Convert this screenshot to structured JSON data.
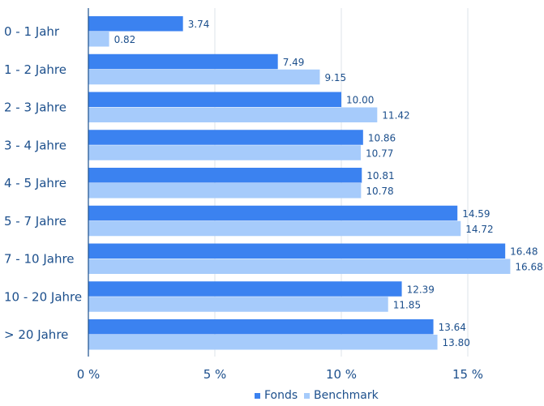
{
  "chart_data": {
    "type": "bar",
    "orientation": "horizontal",
    "categories": [
      "0 - 1 Jahr",
      "1 - 2 Jahre",
      "2 - 3 Jahre",
      "3 - 4 Jahre",
      "4 - 5 Jahre",
      "5 - 7 Jahre",
      "7 - 10 Jahre",
      "10 - 20 Jahre",
      "> 20 Jahre"
    ],
    "series": [
      {
        "name": "Fonds",
        "color": "#3b82f0",
        "values": [
          3.74,
          7.49,
          10.0,
          10.86,
          10.81,
          14.59,
          16.48,
          12.39,
          13.64
        ],
        "labels": [
          "3.74",
          "7.49",
          "10.00",
          "10.86",
          "10.81",
          "14.59",
          "16.48",
          "12.39",
          "13.64"
        ]
      },
      {
        "name": "Benchmark",
        "color": "#a6cbfb",
        "values": [
          0.82,
          9.15,
          11.42,
          10.77,
          10.78,
          14.72,
          16.68,
          11.85,
          13.8
        ],
        "labels": [
          "0.82",
          "9.15",
          "11.42",
          "10.77",
          "10.78",
          "14.72",
          "16.68",
          "11.85",
          "13.80"
        ]
      }
    ],
    "xlim": [
      0,
      18
    ],
    "xticks": [
      0,
      5,
      10,
      15
    ],
    "xtick_labels": [
      "0 %",
      "5 %",
      "10 %",
      "15 %"
    ],
    "grid": true,
    "legend_position": "bottom-center",
    "title": "",
    "xlabel": "",
    "ylabel": ""
  }
}
